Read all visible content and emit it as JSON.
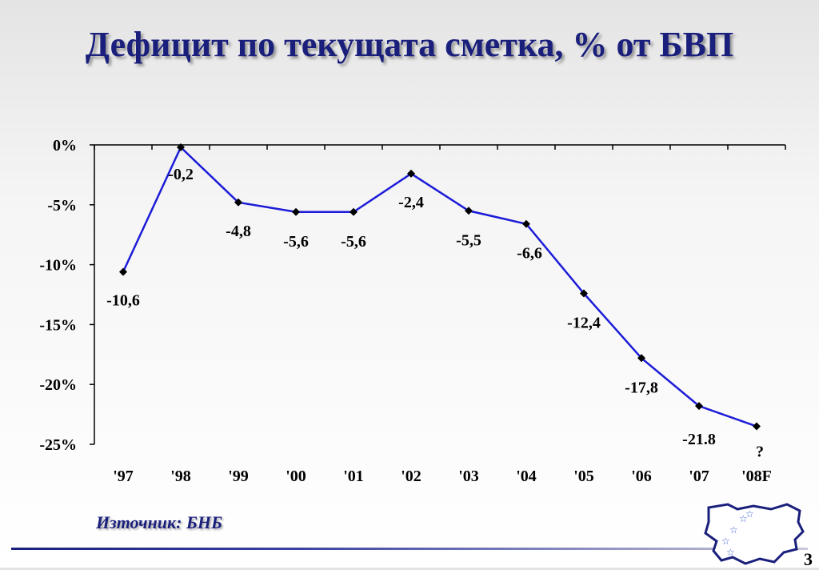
{
  "title": "Дефицит по текущата сметка, % от БВП",
  "source": "Източник: БНБ",
  "page_number": "3",
  "colors": {
    "title": "#1a1f7c",
    "line": "#1c1cd8",
    "marker": "#000000"
  },
  "chart_data": {
    "type": "line",
    "title": "Дефицит по текущата сметка, % от БВП",
    "xlabel": "",
    "ylabel": "",
    "categories": [
      "'97",
      "'98",
      "'99",
      "'00",
      "'01",
      "'02",
      "'03",
      "'04",
      "'05",
      "'06",
      "'07",
      "'08F"
    ],
    "values": [
      -10.6,
      -0.2,
      -4.8,
      -5.6,
      -5.6,
      -2.4,
      -5.5,
      -6.6,
      -12.4,
      -17.8,
      -21.8,
      -23.5
    ],
    "data_labels": [
      "-10,6",
      "-0,2",
      "-4,8",
      "-5,6",
      "-5,6",
      "-2,4",
      "-5,5",
      "-6,6",
      "-12,4",
      "-17,8",
      "-21.8",
      "?"
    ],
    "ylim": [
      -25,
      0
    ],
    "yticks": [
      0,
      -5,
      -10,
      -15,
      -20,
      -25
    ],
    "ytick_labels": [
      "0%",
      "-5%",
      "-10%",
      "-15%",
      "-20%",
      "-25%"
    ],
    "grid": false,
    "legend": "none"
  }
}
